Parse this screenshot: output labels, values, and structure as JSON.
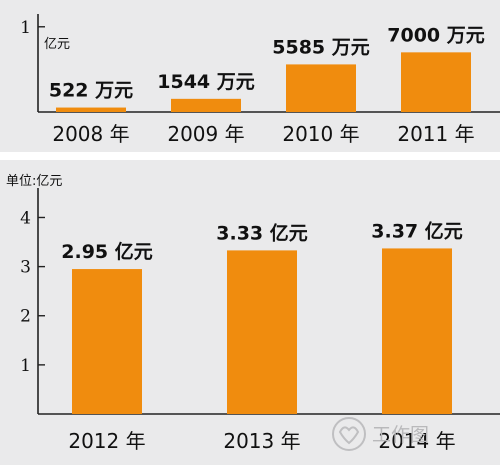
{
  "colors": {
    "bar": "#f08c0e",
    "background": "#eaeaeb",
    "divider": "#ffffff",
    "text": "#111111"
  },
  "chart_data": [
    {
      "type": "bar",
      "unit_label": "亿元",
      "categories": [
        "2008 年",
        "2009 年",
        "2010 年",
        "2011 年"
      ],
      "values": [
        0.0522,
        0.1544,
        0.5585,
        0.7
      ],
      "data_labels": [
        "522 万元",
        "1544 万元",
        "5585 万元",
        "7000 万元"
      ],
      "yticks": [
        1
      ],
      "ytick_labels": [
        "1"
      ],
      "ylim": [
        0,
        1.15
      ],
      "grid": false,
      "legend": "none"
    },
    {
      "type": "bar",
      "unit_label": "单位:亿元",
      "categories": [
        "2012 年",
        "2013 年",
        "2014 年"
      ],
      "values": [
        2.95,
        3.33,
        3.37
      ],
      "data_labels": [
        "2.95 亿元",
        "3.33 亿元",
        "3.37 亿元"
      ],
      "yticks": [
        1,
        2,
        3,
        4
      ],
      "ytick_labels": [
        "1",
        "2",
        "3",
        "4"
      ],
      "ylim": [
        0,
        4.6
      ],
      "grid": false,
      "legend": "none"
    }
  ],
  "watermark": {
    "text": "工作图",
    "icon": "heart-hands-logo"
  }
}
